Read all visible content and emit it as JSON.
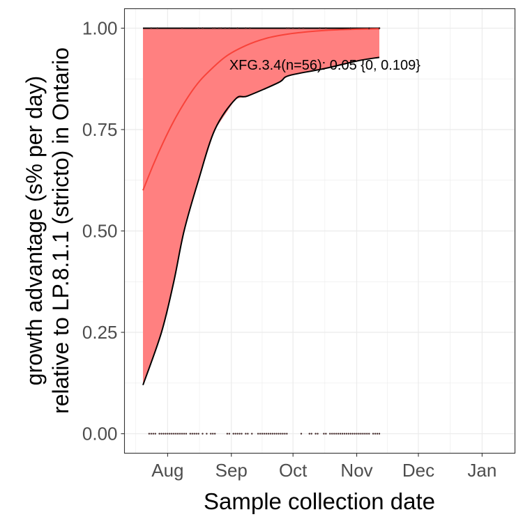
{
  "chart_data": {
    "type": "line",
    "title": "",
    "xlabel": "Sample collection date",
    "ylabel_lines": [
      "growth advantage (s% per day)",
      "relative to LP.8.1.1 (stricto) in Ontario"
    ],
    "xlim": [
      "2025-07-11",
      "2026-01-17"
    ],
    "ylim": [
      -0.048,
      1.048
    ],
    "grid": true,
    "x_ticks": [
      {
        "date": "2025-08-01",
        "label": "Aug"
      },
      {
        "date": "2025-09-01",
        "label": "Sep"
      },
      {
        "date": "2025-10-01",
        "label": "Oct"
      },
      {
        "date": "2025-11-01",
        "label": "Nov"
      },
      {
        "date": "2025-12-01",
        "label": "Dec"
      },
      {
        "date": "2026-01-01",
        "label": "Jan"
      }
    ],
    "y_ticks": [
      {
        "value": 0,
        "label": "0.00"
      },
      {
        "value": 0.25,
        "label": "0.25"
      },
      {
        "value": 0.5,
        "label": "0.50"
      },
      {
        "value": 0.75,
        "label": "0.75"
      },
      {
        "value": 1,
        "label": "1.00"
      }
    ],
    "annotation": {
      "text": "XFG.3.4(n=56): 0.05 {0, 0.109}",
      "date": "2025-08-31",
      "value": 0.91
    },
    "colors": {
      "fit": "#f8433a",
      "ribbon": "#ff8080",
      "ci_line": "#000000",
      "points": "#3a2020",
      "grid": "#ebebeb"
    },
    "fit": {
      "dates": [
        "2025-07-20",
        "2025-07-25",
        "2025-07-30",
        "2025-08-04",
        "2025-08-09",
        "2025-08-14",
        "2025-08-19",
        "2025-08-29",
        "2025-09-08",
        "2025-09-18",
        "2025-09-28",
        "2025-10-08",
        "2025-10-18",
        "2025-10-28",
        "2025-11-12"
      ],
      "values": [
        0.6,
        0.663,
        0.72,
        0.771,
        0.815,
        0.853,
        0.883,
        0.929,
        0.957,
        0.975,
        0.985,
        0.991,
        0.995,
        0.997,
        0.9987
      ]
    },
    "ci_lower": {
      "dates": [
        "2025-07-20",
        "2025-07-29",
        "2025-08-04",
        "2025-08-09",
        "2025-08-16",
        "2025-08-24",
        "2025-09-03",
        "2025-09-09",
        "2025-09-24",
        "2025-09-29",
        "2025-10-16",
        "2025-11-02",
        "2025-11-12"
      ],
      "values": [
        0.12,
        0.25,
        0.375,
        0.5,
        0.625,
        0.75,
        0.825,
        0.833,
        0.866,
        0.883,
        0.9,
        0.92,
        0.928
      ]
    },
    "ci_upper": {
      "dates": [
        "2025-07-20",
        "2025-11-12"
      ],
      "values": [
        1.0,
        1.0
      ]
    },
    "points_at_1": [
      "2025-07-24",
      "2025-07-27",
      "2025-08-08",
      "2025-08-16",
      "2025-08-18",
      "2025-08-23",
      "2025-08-24",
      "2025-08-26",
      "2025-08-27",
      "2025-08-29",
      "2025-08-31",
      "2025-09-04",
      "2025-09-08",
      "2025-09-10",
      "2025-09-28",
      "2025-09-29",
      "2025-10-01",
      "2025-10-04",
      "2025-10-06",
      "2025-10-14",
      "2025-10-17",
      "2025-10-29",
      "2025-11-07",
      "2025-11-12"
    ],
    "points_at_0": [
      "2025-07-23",
      "2025-07-24",
      "2025-07-25",
      "2025-07-26",
      "2025-07-28",
      "2025-07-29",
      "2025-07-30",
      "2025-07-31",
      "2025-08-01",
      "2025-08-02",
      "2025-08-03",
      "2025-08-04",
      "2025-08-05",
      "2025-08-06",
      "2025-08-07",
      "2025-08-08",
      "2025-08-09",
      "2025-08-10",
      "2025-08-12",
      "2025-08-13",
      "2025-08-14",
      "2025-08-15",
      "2025-08-16",
      "2025-08-18",
      "2025-08-20",
      "2025-08-22",
      "2025-08-23",
      "2025-08-24",
      "2025-08-30",
      "2025-08-31",
      "2025-09-02",
      "2025-09-03",
      "2025-09-04",
      "2025-09-05",
      "2025-09-06",
      "2025-09-08",
      "2025-09-09",
      "2025-09-11",
      "2025-09-14",
      "2025-09-15",
      "2025-09-16",
      "2025-09-17",
      "2025-09-18",
      "2025-09-19",
      "2025-09-20",
      "2025-09-21",
      "2025-09-22",
      "2025-09-23",
      "2025-09-24",
      "2025-09-25",
      "2025-09-26",
      "2025-09-27",
      "2025-09-28",
      "2025-10-05",
      "2025-10-09",
      "2025-10-10",
      "2025-10-12",
      "2025-10-13",
      "2025-10-16",
      "2025-10-17",
      "2025-10-19",
      "2025-10-20",
      "2025-10-21",
      "2025-10-22",
      "2025-10-23",
      "2025-10-24",
      "2025-10-25",
      "2025-10-26",
      "2025-10-27",
      "2025-10-28",
      "2025-10-29",
      "2025-10-30",
      "2025-10-31",
      "2025-11-01",
      "2025-11-02",
      "2025-11-03",
      "2025-11-04",
      "2025-11-05",
      "2025-11-06",
      "2025-11-07",
      "2025-11-09",
      "2025-11-10",
      "2025-11-11",
      "2025-11-12"
    ]
  }
}
